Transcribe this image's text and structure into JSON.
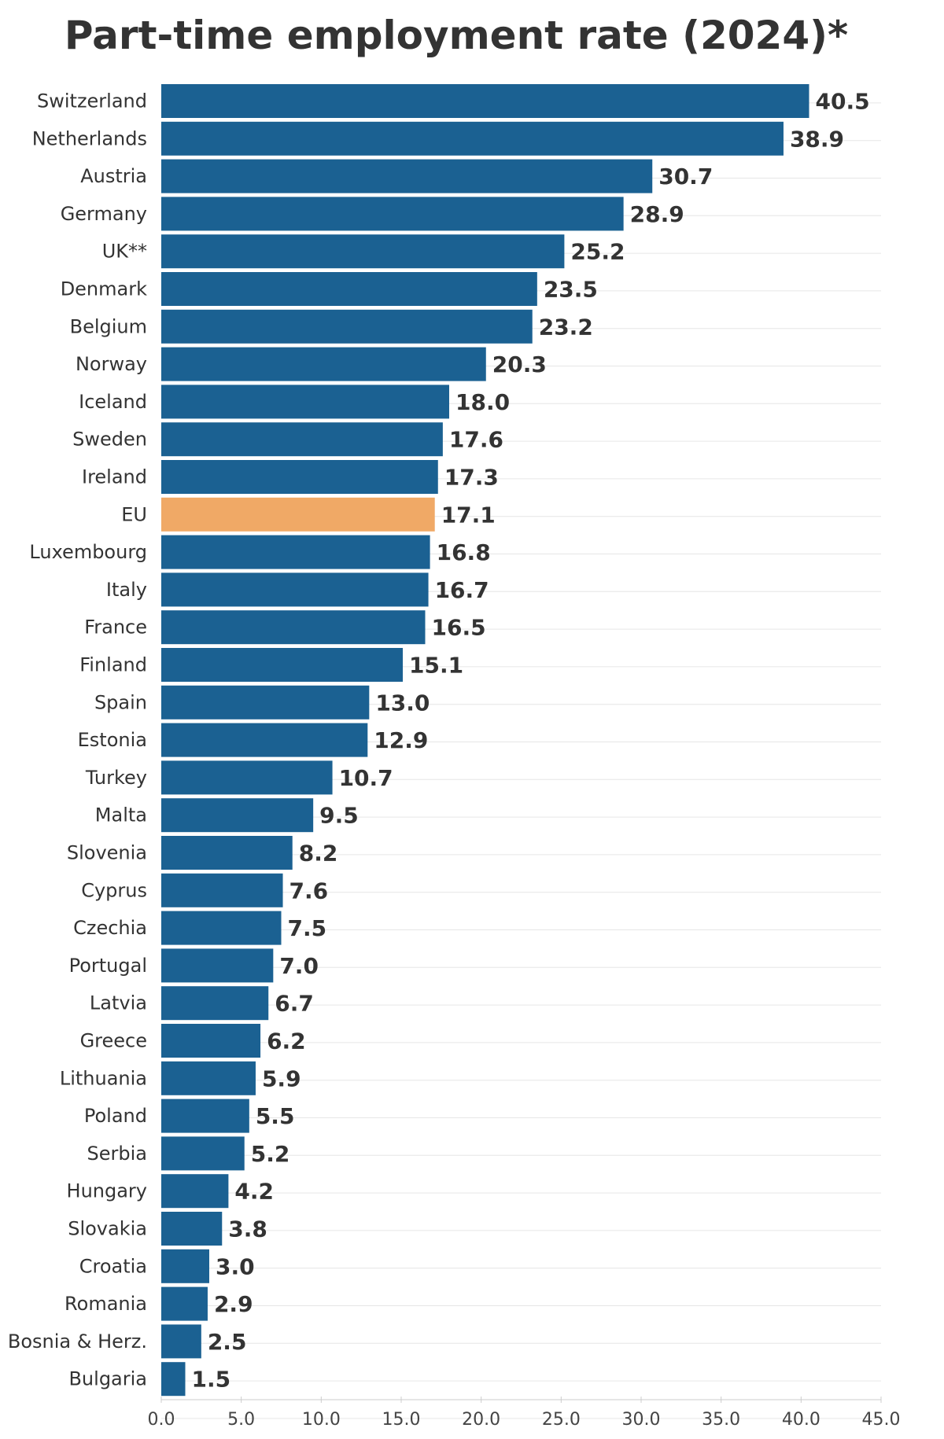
{
  "chart_data": {
    "type": "bar",
    "orientation": "horizontal",
    "title": "Part-time employment rate (2024)*",
    "categories": [
      "Switzerland",
      "Netherlands",
      "Austria",
      "Germany",
      "UK**",
      "Denmark",
      "Belgium",
      "Norway",
      "Iceland",
      "Sweden",
      "Ireland",
      "EU",
      "Luxembourg",
      "Italy",
      "France",
      "Finland",
      "Spain",
      "Estonia",
      "Turkey",
      "Malta",
      "Slovenia",
      "Cyprus",
      "Czechia",
      "Portugal",
      "Latvia",
      "Greece",
      "Lithuania",
      "Poland",
      "Serbia",
      "Hungary",
      "Slovakia",
      "Croatia",
      "Romania",
      "Bosnia & Herz.",
      "Bulgaria"
    ],
    "values": [
      40.5,
      38.9,
      30.7,
      28.9,
      25.2,
      23.5,
      23.2,
      20.3,
      18.0,
      17.6,
      17.3,
      17.1,
      16.8,
      16.7,
      16.5,
      15.1,
      13.0,
      12.9,
      10.7,
      9.5,
      8.2,
      7.6,
      7.5,
      7.0,
      6.7,
      6.2,
      5.9,
      5.5,
      5.2,
      4.2,
      3.8,
      3.0,
      2.9,
      2.5,
      1.5
    ],
    "value_labels": [
      "40.5",
      "38.9",
      "30.7",
      "28.9",
      "25.2",
      "23.5",
      "23.2",
      "20.3",
      "18.0",
      "17.6",
      "17.3",
      "17.1",
      "16.8",
      "16.7",
      "16.5",
      "15.1",
      "13.0",
      "12.9",
      "10.7",
      "9.5",
      "8.2",
      "7.6",
      "7.5",
      "7.0",
      "6.7",
      "6.2",
      "5.9",
      "5.5",
      "5.2",
      "4.2",
      "3.8",
      "3.0",
      "2.9",
      "2.5",
      "1.5"
    ],
    "xlim": [
      0,
      45
    ],
    "xticks": [
      "0.0",
      "5.0",
      "10.0",
      "15.0",
      "20.0",
      "25.0",
      "30.0",
      "35.0",
      "40.0",
      "45.0"
    ],
    "xtick_values": [
      0,
      5,
      10,
      15,
      20,
      25,
      30,
      35,
      40,
      45
    ],
    "grid": true,
    "highlight_category": "EU",
    "colors": {
      "bar": "#1b6192",
      "highlight": "#f0a966",
      "grid": "#e6e6e6"
    }
  }
}
